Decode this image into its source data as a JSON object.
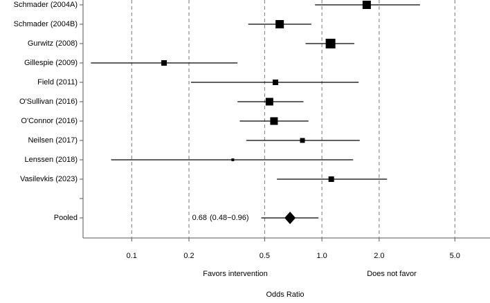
{
  "chart_data": {
    "type": "forest",
    "categories": [
      "Schmader (2004A)",
      "Schmader (2004B)",
      "Gurwitz (2008)",
      "Gillespie (2009)",
      "Field (2011)",
      "O'Sullivan (2016)",
      "O'Connor (2016)",
      "Neilsen (2017)",
      "Lenssen (2018)",
      "Vasilevkis (2023)"
    ],
    "values": [
      1.72,
      0.6,
      1.11,
      0.148,
      0.57,
      0.53,
      0.56,
      0.79,
      0.34,
      1.12
    ],
    "lower": [
      0.92,
      0.41,
      0.82,
      0.061,
      0.205,
      0.36,
      0.37,
      0.4,
      0.078,
      0.58
    ],
    "upper": [
      3.28,
      0.88,
      1.48,
      0.36,
      1.56,
      0.8,
      0.85,
      1.58,
      1.46,
      2.2
    ],
    "weights": [
      12,
      12,
      14,
      8,
      8,
      11,
      11,
      7,
      4,
      8
    ],
    "pooled": {
      "name": "Pooled",
      "value": 0.68,
      "lower": 0.48,
      "upper": 0.96,
      "interval_label": "(0.48−0.96)"
    },
    "color": "#000000",
    "log_x": true,
    "xlim": [
      0.0555,
      7.65
    ],
    "xticks": [
      0.1,
      0.2,
      0.5,
      {
        "value": 1,
        "label": "1.0"
      },
      {
        "value": 2,
        "label": "2.0"
      },
      {
        "value": 5,
        "label": "5.0"
      }
    ],
    "grid": true,
    "annotations": [
      "Favors intervention",
      "Does not favor"
    ],
    "xlabel": "Odds Ratio"
  }
}
